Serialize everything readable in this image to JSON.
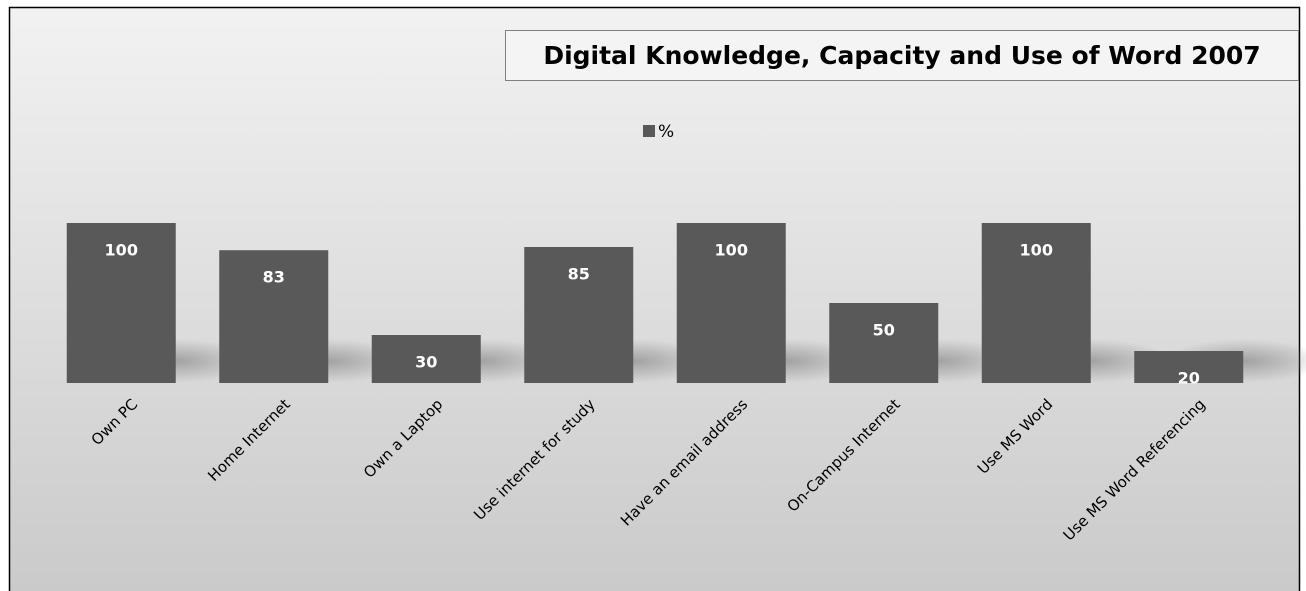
{
  "chart_data": {
    "type": "bar",
    "title": "Digital Knowledge, Capacity and Use of Word 2007",
    "categories": [
      "Own PC",
      "Home Internet",
      "Own a Laptop",
      "Use internet for study",
      "Have an email address",
      "On-Campus Internet",
      "Use MS Word",
      "Use MS Word Referencing"
    ],
    "series": [
      {
        "name": "%",
        "color": "#595959",
        "values": [
          100,
          83,
          30,
          85,
          100,
          50,
          100,
          20
        ]
      }
    ],
    "ylim": [
      0,
      100
    ]
  }
}
